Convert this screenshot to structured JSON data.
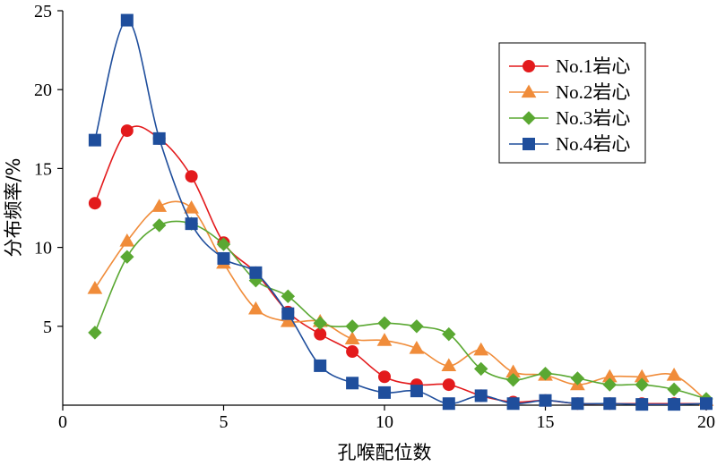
{
  "chart_data": {
    "type": "line",
    "title": "",
    "xlabel": "孔喉配位数",
    "ylabel": "分布频率/%",
    "xlim": [
      0,
      20
    ],
    "ylim": [
      0,
      25
    ],
    "xticks": [
      0,
      5,
      10,
      15,
      20
    ],
    "yticks": [
      5,
      10,
      15,
      20,
      25
    ],
    "grid": false,
    "legend_position": "top-right",
    "series": [
      {
        "name": "No.1岩心",
        "color": "#e31a1c",
        "marker": "circle",
        "x": [
          1,
          2,
          3,
          4,
          5,
          6,
          7,
          8,
          9,
          10,
          11,
          12,
          13,
          14,
          15,
          16,
          17,
          18,
          19,
          20
        ],
        "y": [
          12.8,
          17.4,
          16.9,
          14.5,
          10.3,
          8.4,
          5.9,
          4.5,
          3.4,
          1.8,
          1.3,
          1.3,
          0.6,
          0.2,
          0.3,
          0.1,
          0.1,
          0.1,
          0.1,
          0.1
        ]
      },
      {
        "name": "No.2岩心",
        "color": "#f08c3a",
        "marker": "triangle",
        "x": [
          1,
          2,
          3,
          4,
          5,
          6,
          7,
          8,
          9,
          10,
          11,
          12,
          13,
          14,
          15,
          16,
          17,
          18,
          19,
          20
        ],
        "y": [
          7.4,
          10.4,
          12.6,
          12.5,
          9.0,
          6.1,
          5.3,
          5.3,
          4.2,
          4.1,
          3.6,
          2.5,
          3.5,
          2.1,
          1.9,
          1.3,
          1.8,
          1.8,
          1.9,
          0.3
        ]
      },
      {
        "name": "No.3岩心",
        "color": "#5aa832",
        "marker": "diamond",
        "x": [
          1,
          2,
          3,
          4,
          5,
          6,
          7,
          8,
          9,
          10,
          11,
          12,
          13,
          14,
          15,
          16,
          17,
          18,
          19,
          20
        ],
        "y": [
          4.6,
          9.4,
          11.4,
          11.5,
          10.2,
          7.9,
          6.9,
          5.2,
          5.0,
          5.2,
          5.0,
          4.5,
          2.3,
          1.6,
          2.0,
          1.7,
          1.3,
          1.3,
          1.0,
          0.4
        ]
      },
      {
        "name": "No.4岩心",
        "color": "#1f4e9c",
        "marker": "square",
        "x": [
          1,
          2,
          3,
          4,
          5,
          6,
          7,
          8,
          9,
          10,
          11,
          12,
          13,
          14,
          15,
          16,
          17,
          18,
          19,
          20
        ],
        "y": [
          16.8,
          24.4,
          16.9,
          11.5,
          9.3,
          8.4,
          5.8,
          2.5,
          1.4,
          0.8,
          0.9,
          0.1,
          0.6,
          0.1,
          0.3,
          0.1,
          0.1,
          0.05,
          0.05,
          0.1
        ]
      }
    ]
  }
}
